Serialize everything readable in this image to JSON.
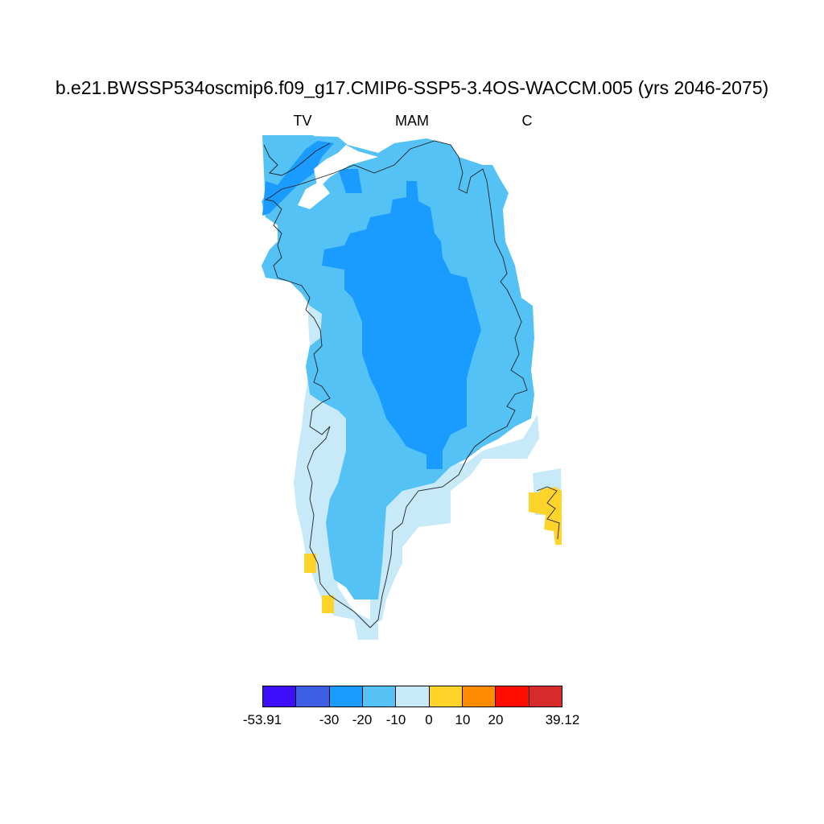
{
  "title": "b.e21.BWSSP534oscmip6.f09_g17.CMIP6-SSP5-3.4OS-WACCM.005 (yrs 2046-2075)",
  "subtitle": {
    "left": "TV",
    "center": "MAM",
    "right": "C"
  },
  "colorbar": {
    "colors": [
      "#3d0efa",
      "#3c5fe5",
      "#1a9bff",
      "#55c2f5",
      "#c8e9f7",
      "#ffd42a",
      "#ff8c00",
      "#ff0d00",
      "#d72a2a"
    ],
    "labels": [
      "-53.91",
      "-30",
      "-20",
      "-10",
      "0",
      "10",
      "20",
      "39.12"
    ]
  },
  "map_fields": {
    "description_levels": [
      "-20 to -30 (interior)",
      "-10 to -20 (margins)",
      "0 to -10 (southwest coast)",
      "0 to 10 (isolated coastal cells)"
    ],
    "colors": {
      "level_m20": "#1a9bff",
      "level_m10": "#55c2f5",
      "level_0": "#c8e9f7",
      "level_p10": "#ffd42a"
    }
  }
}
